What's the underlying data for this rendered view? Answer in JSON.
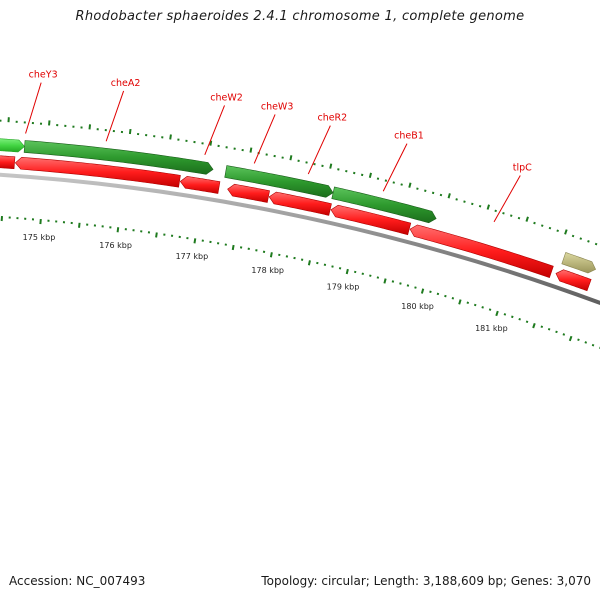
{
  "title": "Rhodobacter sphaeroides 2.4.1 chromosome 1, complete genome",
  "footer": {
    "accession": "Accession: NC_007493",
    "summary": "Topology: circular; Length: 3,188,609 bp; Genes: 3,070"
  },
  "colors": {
    "gene_label": "#e00000",
    "forward_gene_light": "#45d645",
    "forward_gene_dark": "#2e9a2e",
    "reverse_gene": "#ff1c1c",
    "partial_gene": "#b5b070",
    "backbone": "#7f7f7f",
    "tick": "#1e7a1e",
    "position_label": "#222222"
  },
  "chart_data": {
    "type": "genome-map",
    "topology": "circular",
    "length_bp": 3188609,
    "visible_range_kbp": [
      174.3,
      181.8
    ],
    "position_labels": [
      "175 kbp",
      "176 kbp",
      "177 kbp",
      "178 kbp",
      "179 kbp",
      "180 kbp",
      "181 kbp"
    ],
    "labeled_genes": [
      "cheY3",
      "cheA2",
      "cheW2",
      "cheW3",
      "cheR2",
      "cheB1",
      "tlpC"
    ],
    "forward_genes": [
      {
        "strand": "+",
        "start_kbp": 174.35,
        "end_kbp": 174.72,
        "shade": "light"
      },
      {
        "strand": "+",
        "start_kbp": 174.72,
        "end_kbp": 177.08,
        "shade": "dark"
      },
      {
        "strand": "+",
        "start_kbp": 177.24,
        "end_kbp": 178.6,
        "shade": "dark"
      },
      {
        "strand": "+",
        "start_kbp": 178.6,
        "end_kbp": 179.92,
        "shade": "dark"
      }
    ],
    "reverse_genes": [
      {
        "strand": "-",
        "start_kbp": 174.0,
        "end_kbp": 174.3
      },
      {
        "strand": "-",
        "start_kbp": 174.3,
        "end_kbp": 174.62
      },
      {
        "strand": "-",
        "start_kbp": 174.62,
        "end_kbp": 176.7
      },
      {
        "strand": "-",
        "start_kbp": 176.7,
        "end_kbp": 177.2
      },
      {
        "strand": "-",
        "start_kbp": 177.3,
        "end_kbp": 177.83
      },
      {
        "strand": "-",
        "start_kbp": 177.83,
        "end_kbp": 178.62
      },
      {
        "strand": "-",
        "start_kbp": 178.62,
        "end_kbp": 179.64
      },
      {
        "strand": "-",
        "start_kbp": 179.64,
        "end_kbp": 181.5
      },
      {
        "strand": "-",
        "start_kbp": 181.55,
        "end_kbp": 182.0
      }
    ],
    "partial_gene": {
      "strand": "+",
      "start_kbp": 181.58,
      "end_kbp": 182.0
    }
  }
}
